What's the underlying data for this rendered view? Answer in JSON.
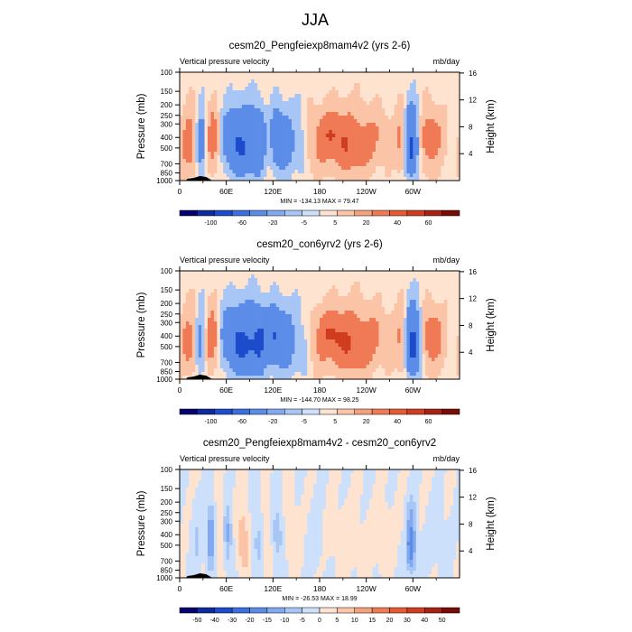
{
  "figure_title": "JJA",
  "chart_data": [
    {
      "type": "heatmap",
      "title": "cesm20_Pengfeiexp8mam4v2 (yrs 2-6)",
      "left_label": "Vertical pressure velocity",
      "right_label": "mb/day",
      "ylabel": "Pressure (mb)",
      "y2label": "Height (km)",
      "x_ticks": [
        "0",
        "60E",
        "120E",
        "180",
        "120W",
        "60W"
      ],
      "x_tick_lon": [
        0,
        60,
        120,
        180,
        240,
        300
      ],
      "xlim": [
        0,
        360
      ],
      "y_ticks": [
        "100",
        "150",
        "200",
        "250",
        "300",
        "400",
        "500",
        "700",
        "850",
        "1000"
      ],
      "y_tick_p": [
        100,
        150,
        200,
        250,
        300,
        400,
        500,
        700,
        850,
        1000
      ],
      "ylim": [
        100,
        1000
      ],
      "y_scale": "log",
      "y2_ticks": [
        "16",
        "12",
        "8",
        "4"
      ],
      "y2_tick_km": [
        16,
        12,
        8,
        4
      ],
      "min_max": "MIN = -134.13  MAX =  79.47",
      "colorbar_labels": [
        "-100",
        "-60",
        "-20",
        "-5",
        "5",
        "20",
        "40",
        "60"
      ],
      "colorbar_colors": [
        "#08006e",
        "#0e2a9e",
        "#1c4ccb",
        "#3a6fe0",
        "#5b8ce8",
        "#82a9f0",
        "#a8c6f5",
        "#cde0fb",
        "#fde3d0",
        "#fbc4a6",
        "#f6a07c",
        "#f07a55",
        "#e55a33",
        "#cf3d1e",
        "#a82213",
        "#7a0c05"
      ],
      "scale": 1.0,
      "features": [
        {
          "lon": 15,
          "w": 9,
          "v": 40
        },
        {
          "lon": 28,
          "w": 6,
          "v": -60
        },
        {
          "lon": 42,
          "w": 8,
          "v": 45
        },
        {
          "lon": 78,
          "w": 16,
          "v": -75
        },
        {
          "lon": 102,
          "w": 7,
          "v": -40
        },
        {
          "lon": 113,
          "w": 4,
          "v": 10
        },
        {
          "lon": 126,
          "w": 6,
          "v": -55
        },
        {
          "lon": 140,
          "w": 7,
          "v": -35
        },
        {
          "lon": 156,
          "w": 6,
          "v": -25
        },
        {
          "lon": 212,
          "w": 34,
          "v": 45
        },
        {
          "lon": 286,
          "w": 5,
          "v": 35
        },
        {
          "lon": 298,
          "w": 7,
          "v": -95
        },
        {
          "lon": 320,
          "w": 13,
          "v": 35
        }
      ]
    },
    {
      "type": "heatmap",
      "title": "cesm20_con6yrv2 (yrs 2-6)",
      "left_label": "Vertical pressure velocity",
      "right_label": "mb/day",
      "ylabel": "Pressure (mb)",
      "y2label": "Height (km)",
      "x_ticks": [
        "0",
        "60E",
        "120E",
        "180",
        "120W",
        "60W"
      ],
      "x_tick_lon": [
        0,
        60,
        120,
        180,
        240,
        300
      ],
      "xlim": [
        0,
        360
      ],
      "y_ticks": [
        "100",
        "150",
        "200",
        "250",
        "300",
        "400",
        "500",
        "700",
        "850",
        "1000"
      ],
      "y_tick_p": [
        100,
        150,
        200,
        250,
        300,
        400,
        500,
        700,
        850,
        1000
      ],
      "ylim": [
        100,
        1000
      ],
      "y_scale": "log",
      "y2_ticks": [
        "16",
        "12",
        "8",
        "4"
      ],
      "y2_tick_km": [
        16,
        12,
        8,
        4
      ],
      "min_max": "MIN = -144.70  MAX =  98.25",
      "colorbar_labels": [
        "-100",
        "-60",
        "-20",
        "-5",
        "5",
        "20",
        "40",
        "60"
      ],
      "colorbar_colors": [
        "#08006e",
        "#0e2a9e",
        "#1c4ccb",
        "#3a6fe0",
        "#5b8ce8",
        "#82a9f0",
        "#a8c6f5",
        "#cde0fb",
        "#fde3d0",
        "#fbc4a6",
        "#f6a07c",
        "#f07a55",
        "#e55a33",
        "#cf3d1e",
        "#a82213",
        "#7a0c05"
      ],
      "scale": 1.0,
      "features": [
        {
          "lon": 14,
          "w": 9,
          "v": 35
        },
        {
          "lon": 28,
          "w": 6,
          "v": -55
        },
        {
          "lon": 40,
          "w": 8,
          "v": 50
        },
        {
          "lon": 80,
          "w": 18,
          "v": -80
        },
        {
          "lon": 103,
          "w": 7,
          "v": -45
        },
        {
          "lon": 124,
          "w": 8,
          "v": -55
        },
        {
          "lon": 140,
          "w": 7,
          "v": -35
        },
        {
          "lon": 158,
          "w": 8,
          "v": -25
        },
        {
          "lon": 214,
          "w": 34,
          "v": 48
        },
        {
          "lon": 287,
          "w": 5,
          "v": 40
        },
        {
          "lon": 300,
          "w": 8,
          "v": -100
        },
        {
          "lon": 322,
          "w": 12,
          "v": 38
        }
      ]
    },
    {
      "type": "heatmap",
      "title": "cesm20_Pengfeiexp8mam4v2 - cesm20_con6yrv2",
      "left_label": "Vertical pressure velocity",
      "right_label": "mb/day",
      "ylabel": "Pressure (mb)",
      "y2label": "Height (km)",
      "x_ticks": [
        "0",
        "60E",
        "120E",
        "180",
        "120W",
        "60W"
      ],
      "x_tick_lon": [
        0,
        60,
        120,
        180,
        240,
        300
      ],
      "xlim": [
        0,
        360
      ],
      "y_ticks": [
        "100",
        "150",
        "200",
        "250",
        "300",
        "400",
        "500",
        "700",
        "850",
        "1000"
      ],
      "y_tick_p": [
        100,
        150,
        200,
        250,
        300,
        400,
        500,
        700,
        850,
        1000
      ],
      "ylim": [
        100,
        1000
      ],
      "y_scale": "log",
      "y2_ticks": [
        "16",
        "12",
        "8",
        "4"
      ],
      "y2_tick_km": [
        16,
        12,
        8,
        4
      ],
      "min_max": "MIN = -26.53  MAX =  18.99",
      "colorbar_labels": [
        "-50",
        "-40",
        "-30",
        "-20",
        "-15",
        "-10",
        "-5",
        "0",
        "5",
        "10",
        "15",
        "20",
        "30",
        "40",
        "50"
      ],
      "colorbar_colors": [
        "#08006e",
        "#0e2a9e",
        "#1c4ccb",
        "#3a6fe0",
        "#5b8ce8",
        "#82a9f0",
        "#a8c6f5",
        "#cde0fb",
        "#fde3d0",
        "#fbc4a6",
        "#f6a07c",
        "#f07a55",
        "#e55a33",
        "#cf3d1e",
        "#a82213",
        "#7a0c05"
      ],
      "scale": 0.4,
      "features": [
        {
          "lon": 22,
          "w": 5,
          "v": -6
        },
        {
          "lon": 40,
          "w": 4,
          "v": -18
        },
        {
          "lon": 52,
          "w": 4,
          "v": 6
        },
        {
          "lon": 62,
          "w": 4,
          "v": -12
        },
        {
          "lon": 82,
          "w": 5,
          "v": 12
        },
        {
          "lon": 100,
          "w": 5,
          "v": -8
        },
        {
          "lon": 112,
          "w": 4,
          "v": 7
        },
        {
          "lon": 126,
          "w": 5,
          "v": -9
        },
        {
          "lon": 145,
          "w": 6,
          "v": 5
        },
        {
          "lon": 175,
          "w": 8,
          "v": -4
        },
        {
          "lon": 215,
          "w": 20,
          "v": 3
        },
        {
          "lon": 262,
          "w": 8,
          "v": 4
        },
        {
          "lon": 290,
          "w": 3,
          "v": 6
        },
        {
          "lon": 297,
          "w": 5,
          "v": -24
        },
        {
          "lon": 330,
          "w": 10,
          "v": -3
        }
      ]
    }
  ]
}
